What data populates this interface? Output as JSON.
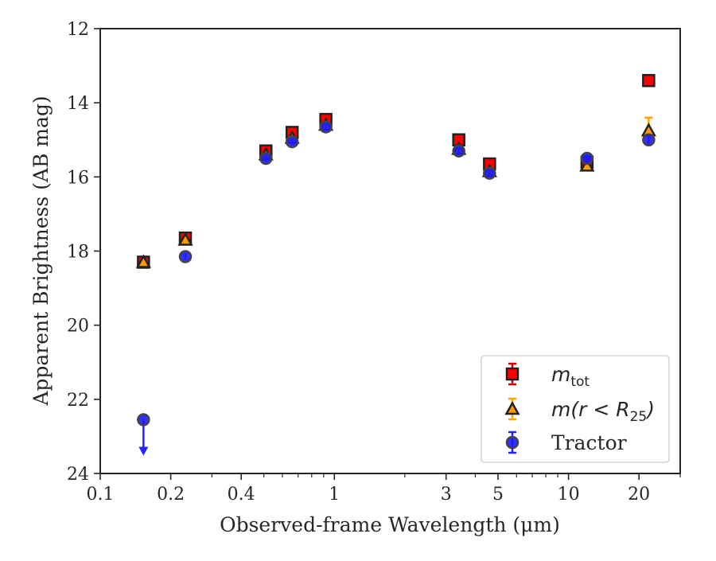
{
  "chart_data": {
    "type": "scatter",
    "xlabel": "Observed-frame Wavelength (μm)",
    "ylabel": "Apparent Brightness (AB mag)",
    "xscale": "log",
    "xlim": [
      0.1,
      30
    ],
    "ylim": [
      24,
      12
    ],
    "y_inverted": true,
    "grid": false,
    "legend_position": "lower-right",
    "x_tick_labels": [
      "0.1",
      "0.2",
      "0.4",
      "1",
      "3",
      "5",
      "10",
      "20"
    ],
    "x_tick_values": [
      0.1,
      0.2,
      0.4,
      1,
      3,
      5,
      10,
      20
    ],
    "y_tick_labels": [
      "12",
      "14",
      "16",
      "18",
      "20",
      "22",
      "24"
    ],
    "y_tick_values": [
      12,
      14,
      16,
      18,
      20,
      22,
      24
    ],
    "series": [
      {
        "name": "m_tot",
        "legend_main": "m",
        "legend_sub": "tot",
        "marker": "square",
        "color": "#ff0000",
        "edge_color": "#222222",
        "errorbar_color": "#d40000",
        "points": [
          {
            "x": 0.153,
            "y": 18.3
          },
          {
            "x": 0.231,
            "y": 17.65
          },
          {
            "x": 0.51,
            "y": 15.3
          },
          {
            "x": 0.66,
            "y": 14.8
          },
          {
            "x": 0.92,
            "y": 14.45
          },
          {
            "x": 3.4,
            "y": 15.0
          },
          {
            "x": 4.6,
            "y": 15.65
          },
          {
            "x": 12.0,
            "y": 15.6
          },
          {
            "x": 22.0,
            "y": 13.4
          }
        ]
      },
      {
        "name": "m(r < R_25)",
        "legend_main": "m(r < R",
        "legend_sub": "25",
        "legend_end": ")",
        "marker": "triangle",
        "color": "#ff9900",
        "edge_color": "#222222",
        "errorbar_color": "#ffa500",
        "points": [
          {
            "x": 0.153,
            "y": 18.3
          },
          {
            "x": 0.231,
            "y": 17.7
          },
          {
            "x": 0.51,
            "y": 15.4
          },
          {
            "x": 0.66,
            "y": 14.95
          },
          {
            "x": 0.92,
            "y": 14.6
          },
          {
            "x": 3.4,
            "y": 15.25
          },
          {
            "x": 4.6,
            "y": 15.85
          },
          {
            "x": 12.0,
            "y": 15.7
          },
          {
            "x": 22.0,
            "y": 14.75,
            "yerr": 0.35
          }
        ]
      },
      {
        "name": "Tractor",
        "legend_main": "Tractor",
        "marker": "circle",
        "color": "#1a1aff",
        "edge_color": "#444444",
        "errorbar_color": "#2222ff",
        "points": [
          {
            "x": 0.153,
            "y": 22.55,
            "upper_limit": true
          },
          {
            "x": 0.231,
            "y": 18.15
          },
          {
            "x": 0.51,
            "y": 15.5
          },
          {
            "x": 0.66,
            "y": 15.05
          },
          {
            "x": 0.92,
            "y": 14.65
          },
          {
            "x": 3.4,
            "y": 15.3
          },
          {
            "x": 4.6,
            "y": 15.9
          },
          {
            "x": 12.0,
            "y": 15.5
          },
          {
            "x": 22.0,
            "y": 15.0
          }
        ]
      }
    ]
  }
}
